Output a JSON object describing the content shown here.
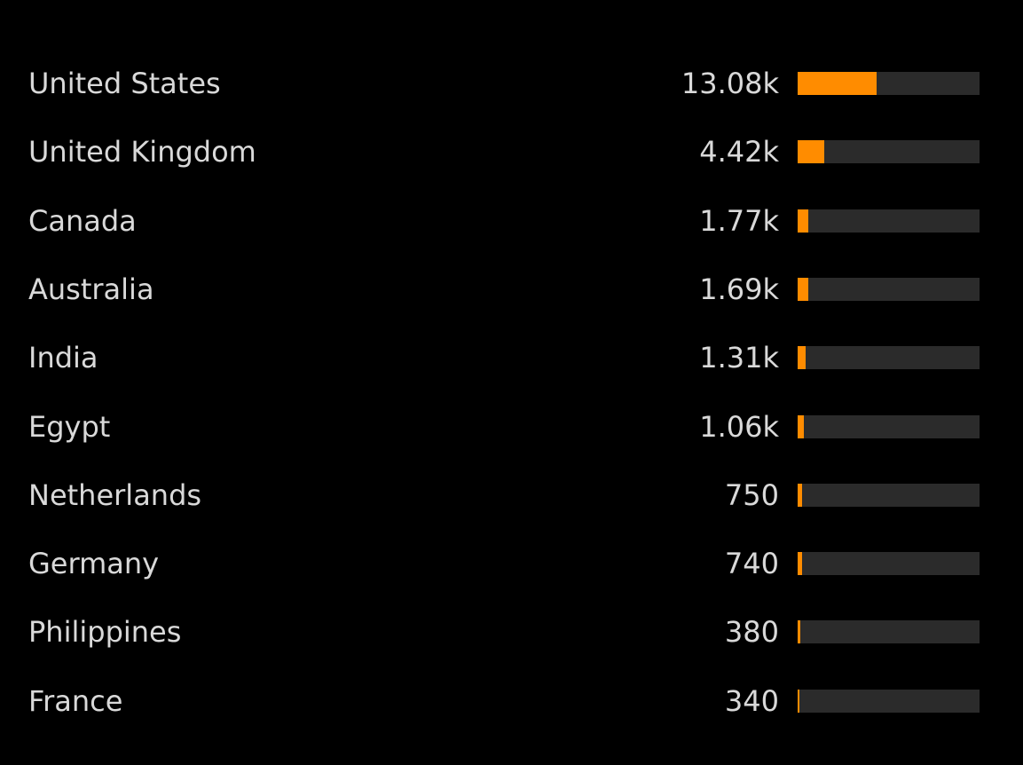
{
  "colors": {
    "background": "#000000",
    "text": "#d9d9d9",
    "bar_track": "#2b2b2b",
    "bar_fill": "#ff8c00"
  },
  "chart_data": {
    "type": "bar",
    "orientation": "horizontal",
    "title": "",
    "xlabel": "",
    "ylabel": "",
    "xlim": [
      0,
      30000
    ],
    "grid": false,
    "legend": "none",
    "categories": [
      "United States",
      "United Kingdom",
      "Canada",
      "Australia",
      "India",
      "Egypt",
      "Netherlands",
      "Germany",
      "Philippines",
      "France"
    ],
    "values": [
      13080,
      4420,
      1770,
      1690,
      1310,
      1060,
      750,
      740,
      380,
      340
    ],
    "value_labels": [
      "13.08k",
      "4.42k",
      "1.77k",
      "1.69k",
      "1.31k",
      "1.06k",
      "750",
      "740",
      "380",
      "340"
    ]
  }
}
